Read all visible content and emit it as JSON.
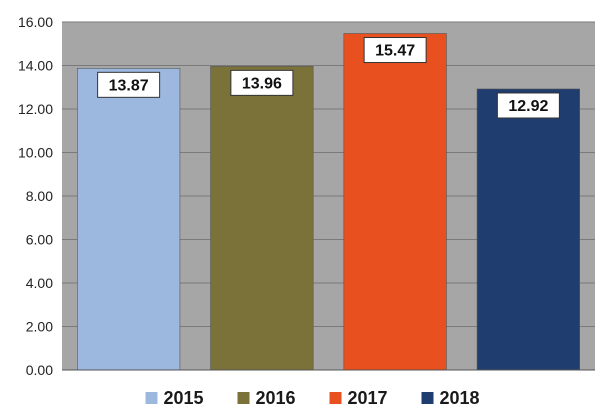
{
  "chart_data": {
    "type": "bar",
    "title": "",
    "xlabel": "",
    "ylabel": "",
    "ylim": [
      0,
      16
    ],
    "y_ticks": [
      "0.00",
      "2.00",
      "4.00",
      "6.00",
      "8.00",
      "10.00",
      "12.00",
      "14.00",
      "16.00"
    ],
    "grid": true,
    "legend_position": "bottom",
    "plot_background": "#a6a6a6",
    "series": [
      {
        "name": "2015",
        "value": 13.87,
        "label": "13.87",
        "color": "#9cb8de"
      },
      {
        "name": "2016",
        "value": 13.96,
        "label": "13.96",
        "color": "#7b7239"
      },
      {
        "name": "2017",
        "value": 15.47,
        "label": "15.47",
        "color": "#e9501f"
      },
      {
        "name": "2018",
        "value": 12.92,
        "label": "12.92",
        "color": "#1f3d6e"
      }
    ]
  }
}
